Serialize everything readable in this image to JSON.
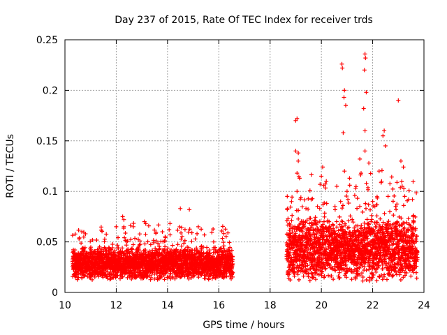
{
  "chart_data": {
    "type": "scatter",
    "title": "Day 237 of 2015, Rate Of TEC Index for receiver trds",
    "xlabel": "GPS time / hours",
    "ylabel": "ROTI / TECUs",
    "xlim": [
      10,
      24
    ],
    "ylim": [
      0,
      0.25
    ],
    "grid": true,
    "marker": "+",
    "color": "#ff0000",
    "x_ticks": [
      10,
      12,
      14,
      16,
      18,
      20,
      22,
      24
    ],
    "x_tick_labels": [
      "10",
      "12",
      "14",
      "16",
      "18",
      "20",
      "22",
      "24"
    ],
    "y_ticks": [
      0,
      0.05,
      0.1,
      0.15,
      0.2,
      0.25
    ],
    "y_tick_labels": [
      "0",
      "0.05",
      "0.1",
      "0.15",
      "0.2",
      "0.25"
    ],
    "series": [
      {
        "name": "ROTI",
        "segments": [
          {
            "x_start": 10.3,
            "x_end": 16.55,
            "typical_min": 0.012,
            "typical_max": 0.045
          },
          {
            "x_start": 18.65,
            "x_end": 23.75,
            "typical_min": 0.01,
            "typical_max": 0.075
          }
        ],
        "points": [
          {
            "x": 10.55,
            "y": 0.053
          },
          {
            "x": 10.8,
            "y": 0.058
          },
          {
            "x": 11.35,
            "y": 0.045
          },
          {
            "x": 12.0,
            "y": 0.065
          },
          {
            "x": 12.25,
            "y": 0.075
          },
          {
            "x": 12.3,
            "y": 0.072
          },
          {
            "x": 12.3,
            "y": 0.065
          },
          {
            "x": 13.1,
            "y": 0.07
          },
          {
            "x": 13.15,
            "y": 0.068
          },
          {
            "x": 13.8,
            "y": 0.06
          },
          {
            "x": 14.1,
            "y": 0.057
          },
          {
            "x": 14.5,
            "y": 0.083
          },
          {
            "x": 14.85,
            "y": 0.082
          },
          {
            "x": 14.55,
            "y": 0.064
          },
          {
            "x": 15.2,
            "y": 0.065
          },
          {
            "x": 15.8,
            "y": 0.05
          },
          {
            "x": 16.2,
            "y": 0.046
          },
          {
            "x": 18.7,
            "y": 0.073
          },
          {
            "x": 18.75,
            "y": 0.068
          },
          {
            "x": 19.0,
            "y": 0.17
          },
          {
            "x": 19.05,
            "y": 0.172
          },
          {
            "x": 19.0,
            "y": 0.14
          },
          {
            "x": 19.1,
            "y": 0.138
          },
          {
            "x": 19.1,
            "y": 0.13
          },
          {
            "x": 19.05,
            "y": 0.118
          },
          {
            "x": 19.15,
            "y": 0.113
          },
          {
            "x": 19.05,
            "y": 0.1
          },
          {
            "x": 19.2,
            "y": 0.094
          },
          {
            "x": 19.4,
            "y": 0.083
          },
          {
            "x": 19.6,
            "y": 0.092
          },
          {
            "x": 19.85,
            "y": 0.085
          },
          {
            "x": 19.95,
            "y": 0.107
          },
          {
            "x": 20.05,
            "y": 0.124
          },
          {
            "x": 20.0,
            "y": 0.115
          },
          {
            "x": 20.3,
            "y": 0.07
          },
          {
            "x": 20.6,
            "y": 0.105
          },
          {
            "x": 20.8,
            "y": 0.226
          },
          {
            "x": 20.82,
            "y": 0.222
          },
          {
            "x": 20.9,
            "y": 0.2
          },
          {
            "x": 20.88,
            "y": 0.193
          },
          {
            "x": 20.95,
            "y": 0.185
          },
          {
            "x": 20.85,
            "y": 0.158
          },
          {
            "x": 20.9,
            "y": 0.12
          },
          {
            "x": 20.75,
            "y": 0.09
          },
          {
            "x": 21.0,
            "y": 0.1
          },
          {
            "x": 21.1,
            "y": 0.113
          },
          {
            "x": 21.3,
            "y": 0.096
          },
          {
            "x": 21.5,
            "y": 0.132
          },
          {
            "x": 21.55,
            "y": 0.118
          },
          {
            "x": 21.7,
            "y": 0.236
          },
          {
            "x": 21.72,
            "y": 0.232
          },
          {
            "x": 21.68,
            "y": 0.22
          },
          {
            "x": 21.75,
            "y": 0.198
          },
          {
            "x": 21.65,
            "y": 0.182
          },
          {
            "x": 21.7,
            "y": 0.16
          },
          {
            "x": 21.7,
            "y": 0.14
          },
          {
            "x": 21.85,
            "y": 0.128
          },
          {
            "x": 22.0,
            "y": 0.09
          },
          {
            "x": 22.25,
            "y": 0.12
          },
          {
            "x": 22.4,
            "y": 0.155
          },
          {
            "x": 22.45,
            "y": 0.16
          },
          {
            "x": 22.5,
            "y": 0.145
          },
          {
            "x": 22.35,
            "y": 0.11
          },
          {
            "x": 22.6,
            "y": 0.095
          },
          {
            "x": 22.9,
            "y": 0.085
          },
          {
            "x": 23.0,
            "y": 0.19
          },
          {
            "x": 23.1,
            "y": 0.13
          },
          {
            "x": 23.2,
            "y": 0.124
          },
          {
            "x": 23.15,
            "y": 0.105
          },
          {
            "x": 23.25,
            "y": 0.095
          },
          {
            "x": 23.4,
            "y": 0.092
          },
          {
            "x": 23.55,
            "y": 0.092
          },
          {
            "x": 23.6,
            "y": 0.07
          }
        ]
      }
    ]
  }
}
